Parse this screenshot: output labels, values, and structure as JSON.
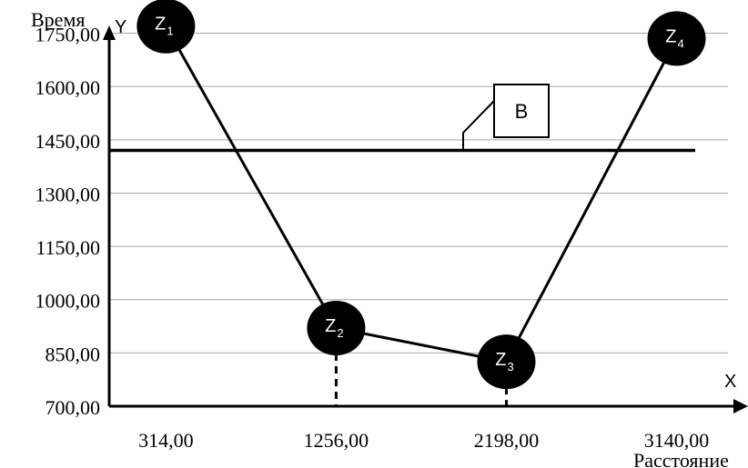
{
  "chart_data": {
    "type": "line",
    "x_ticks": [
      314,
      1256,
      2198,
      3140
    ],
    "x_tick_labels": [
      "314,00",
      "1256,00",
      "2198,00",
      "3140,00"
    ],
    "y_ticks": [
      700,
      850,
      1000,
      1150,
      1300,
      1450,
      1600,
      1750
    ],
    "y_tick_labels": [
      "700,00",
      "850,00",
      "1000,00",
      "1150,00",
      "1300,00",
      "1450,00",
      "1600,00",
      "1750,00"
    ],
    "xlim": [
      0,
      3500
    ],
    "ylim": [
      700,
      1800
    ],
    "x_axis_letter": "X",
    "y_axis_letter": "Y",
    "xlabel": "Расстояние",
    "ylabel": "Время",
    "grid": true,
    "series": [
      {
        "points": [
          {
            "label": "Z",
            "sub": "1",
            "x": 314,
            "y": 1770
          },
          {
            "label": "Z",
            "sub": "2",
            "x": 1256,
            "y": 920
          },
          {
            "label": "Z",
            "sub": "3",
            "x": 2198,
            "y": 825
          },
          {
            "label": "Z",
            "sub": "4",
            "x": 3140,
            "y": 1735
          }
        ]
      }
    ],
    "horizontal_line": {
      "y": 1420,
      "label": "B"
    }
  }
}
